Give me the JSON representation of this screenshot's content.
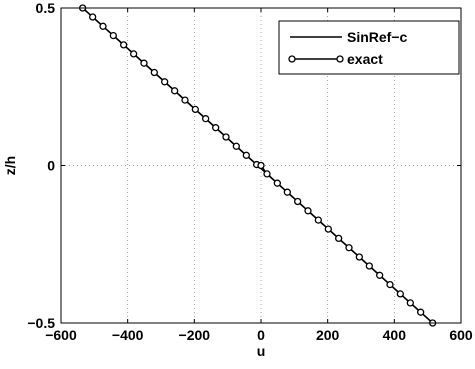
{
  "chart_data": {
    "type": "line",
    "xlabel": "u",
    "ylabel": "z/h",
    "xlim": [
      -600,
      600
    ],
    "ylim": [
      -0.5,
      0.5
    ],
    "xticks": [
      -600,
      -400,
      -200,
      0,
      200,
      400,
      600
    ],
    "xtick_labels": [
      "−600",
      "−400",
      "−200",
      "0",
      "200",
      "400",
      "600"
    ],
    "yticks": [
      -0.5,
      0,
      0.5
    ],
    "ytick_labels": [
      "−0.5",
      "0",
      "0.5"
    ],
    "grid": true,
    "legend_position": "top-right",
    "series": [
      {
        "name": "SinRef−c",
        "style": "solid-line",
        "color": "#000000",
        "x": [
          -535,
          515
        ],
        "y": [
          0.5,
          -0.5
        ]
      },
      {
        "name": "exact",
        "style": "line-with-circle-markers",
        "color": "#000000",
        "x": [
          -535,
          -505,
          -474,
          -443,
          -412,
          -382,
          -351,
          -320,
          -289,
          -259,
          -228,
          -197,
          -166,
          -136,
          -105,
          -74,
          -44,
          -13,
          0,
          18,
          49,
          79,
          110,
          141,
          172,
          202,
          233,
          264,
          295,
          325,
          356,
          387,
          418,
          448,
          479,
          515
        ],
        "y": [
          0.5,
          0.4714,
          0.4419,
          0.4124,
          0.3829,
          0.3543,
          0.3248,
          0.2952,
          0.2657,
          0.2371,
          0.2076,
          0.1781,
          0.1486,
          0.12,
          0.0905,
          0.061,
          0.0324,
          0.0029,
          0.0,
          -0.0267,
          -0.0562,
          -0.0848,
          -0.1143,
          -0.1438,
          -0.1733,
          -0.2019,
          -0.2314,
          -0.261,
          -0.2905,
          -0.3191,
          -0.3486,
          -0.3781,
          -0.4076,
          -0.4362,
          -0.4657,
          -0.5
        ]
      }
    ]
  }
}
